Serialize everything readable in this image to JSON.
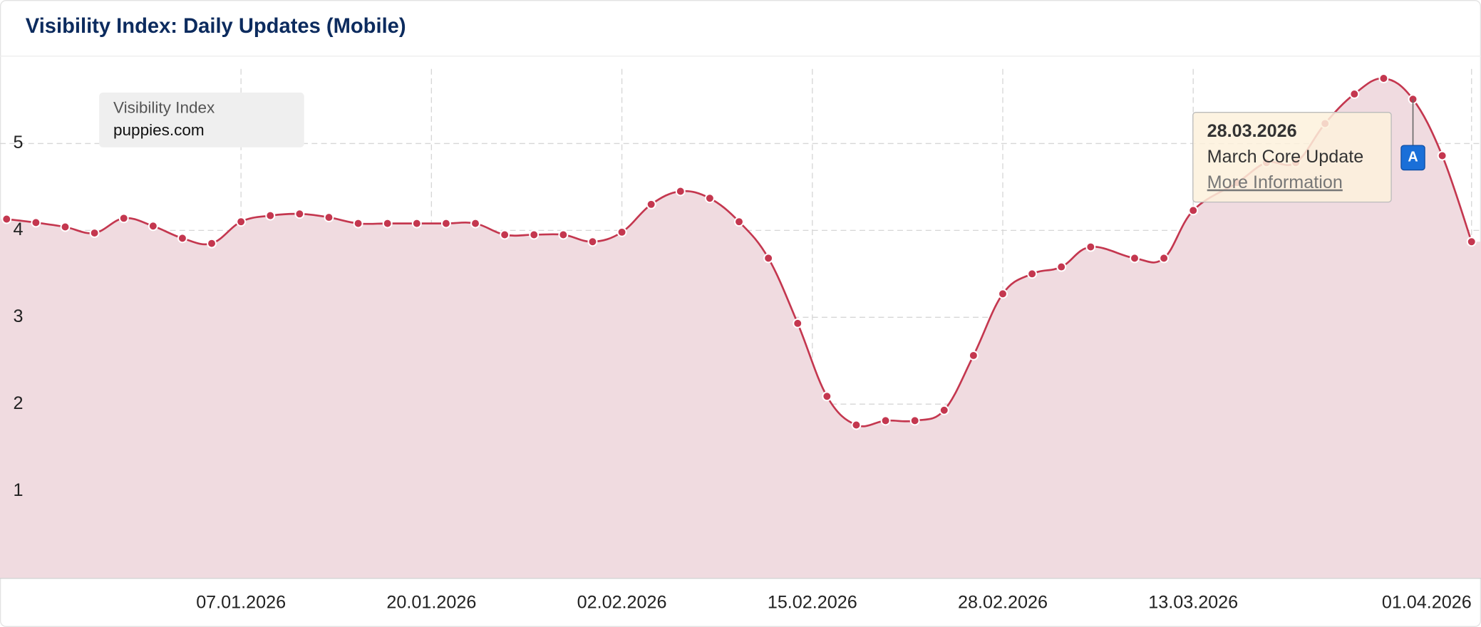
{
  "chart_data": {
    "type": "area",
    "title": "Visibility Index: Daily Updates (Mobile)",
    "legend": {
      "title": "Visibility Index",
      "domain": "puppies.com"
    },
    "x": [
      "22.12.2025",
      "24.12.2025",
      "26.12.2025",
      "28.12.2025",
      "30.12.2025",
      "01.01.2026",
      "03.01.2026",
      "05.01.2026",
      "07.01.2026",
      "09.01.2026",
      "11.01.2026",
      "13.01.2026",
      "15.01.2026",
      "17.01.2026",
      "19.01.2026",
      "21.01.2026",
      "23.01.2026",
      "25.01.2026",
      "27.01.2026",
      "29.01.2026",
      "31.01.2026",
      "02.02.2026",
      "04.02.2026",
      "06.02.2026",
      "08.02.2026",
      "10.02.2026",
      "12.02.2026",
      "14.02.2026",
      "16.02.2026",
      "18.02.2026",
      "20.02.2026",
      "22.02.2026",
      "24.02.2026",
      "26.02.2026",
      "28.02.2026",
      "02.03.2026",
      "04.03.2026",
      "06.03.2026",
      "09.03.2026",
      "11.03.2026",
      "13.03.2026",
      "16.03.2026",
      "18.03.2026",
      "20.03.2026",
      "22.03.2026",
      "24.03.2026",
      "26.03.2026",
      "28.03.2026",
      "30.03.2026",
      "01.04.2026"
    ],
    "series": [
      {
        "name": "puppies.com",
        "color": "#c4374f",
        "values": [
          4.13,
          4.09,
          4.04,
          3.97,
          4.14,
          4.05,
          3.91,
          3.85,
          4.1,
          4.17,
          4.19,
          4.15,
          4.08,
          4.08,
          4.08,
          4.08,
          4.08,
          3.95,
          3.95,
          3.95,
          3.87,
          3.98,
          4.3,
          4.45,
          4.37,
          4.1,
          3.68,
          2.93,
          2.09,
          1.76,
          1.81,
          1.81,
          1.93,
          2.56,
          3.27,
          3.5,
          3.58,
          3.81,
          3.68,
          3.68,
          4.23,
          4.55,
          4.78,
          4.78,
          5.23,
          5.57,
          5.75,
          5.51,
          4.86,
          3.87
        ]
      }
    ],
    "xlim": [
      "22.12.2025",
      "01.04.2026"
    ],
    "xticks": [
      "07.01.2026",
      "20.01.2026",
      "02.02.2026",
      "15.02.2026",
      "28.02.2026",
      "13.03.2026",
      "01.04.2026"
    ],
    "ylim": [
      0,
      6
    ],
    "yticks": [
      1,
      2,
      3,
      4,
      5
    ],
    "grid": true,
    "annotation": {
      "x": "28.03.2026",
      "marker": "A",
      "date": "28.03.2026",
      "text": "March Core Update",
      "link": "More Information"
    }
  }
}
